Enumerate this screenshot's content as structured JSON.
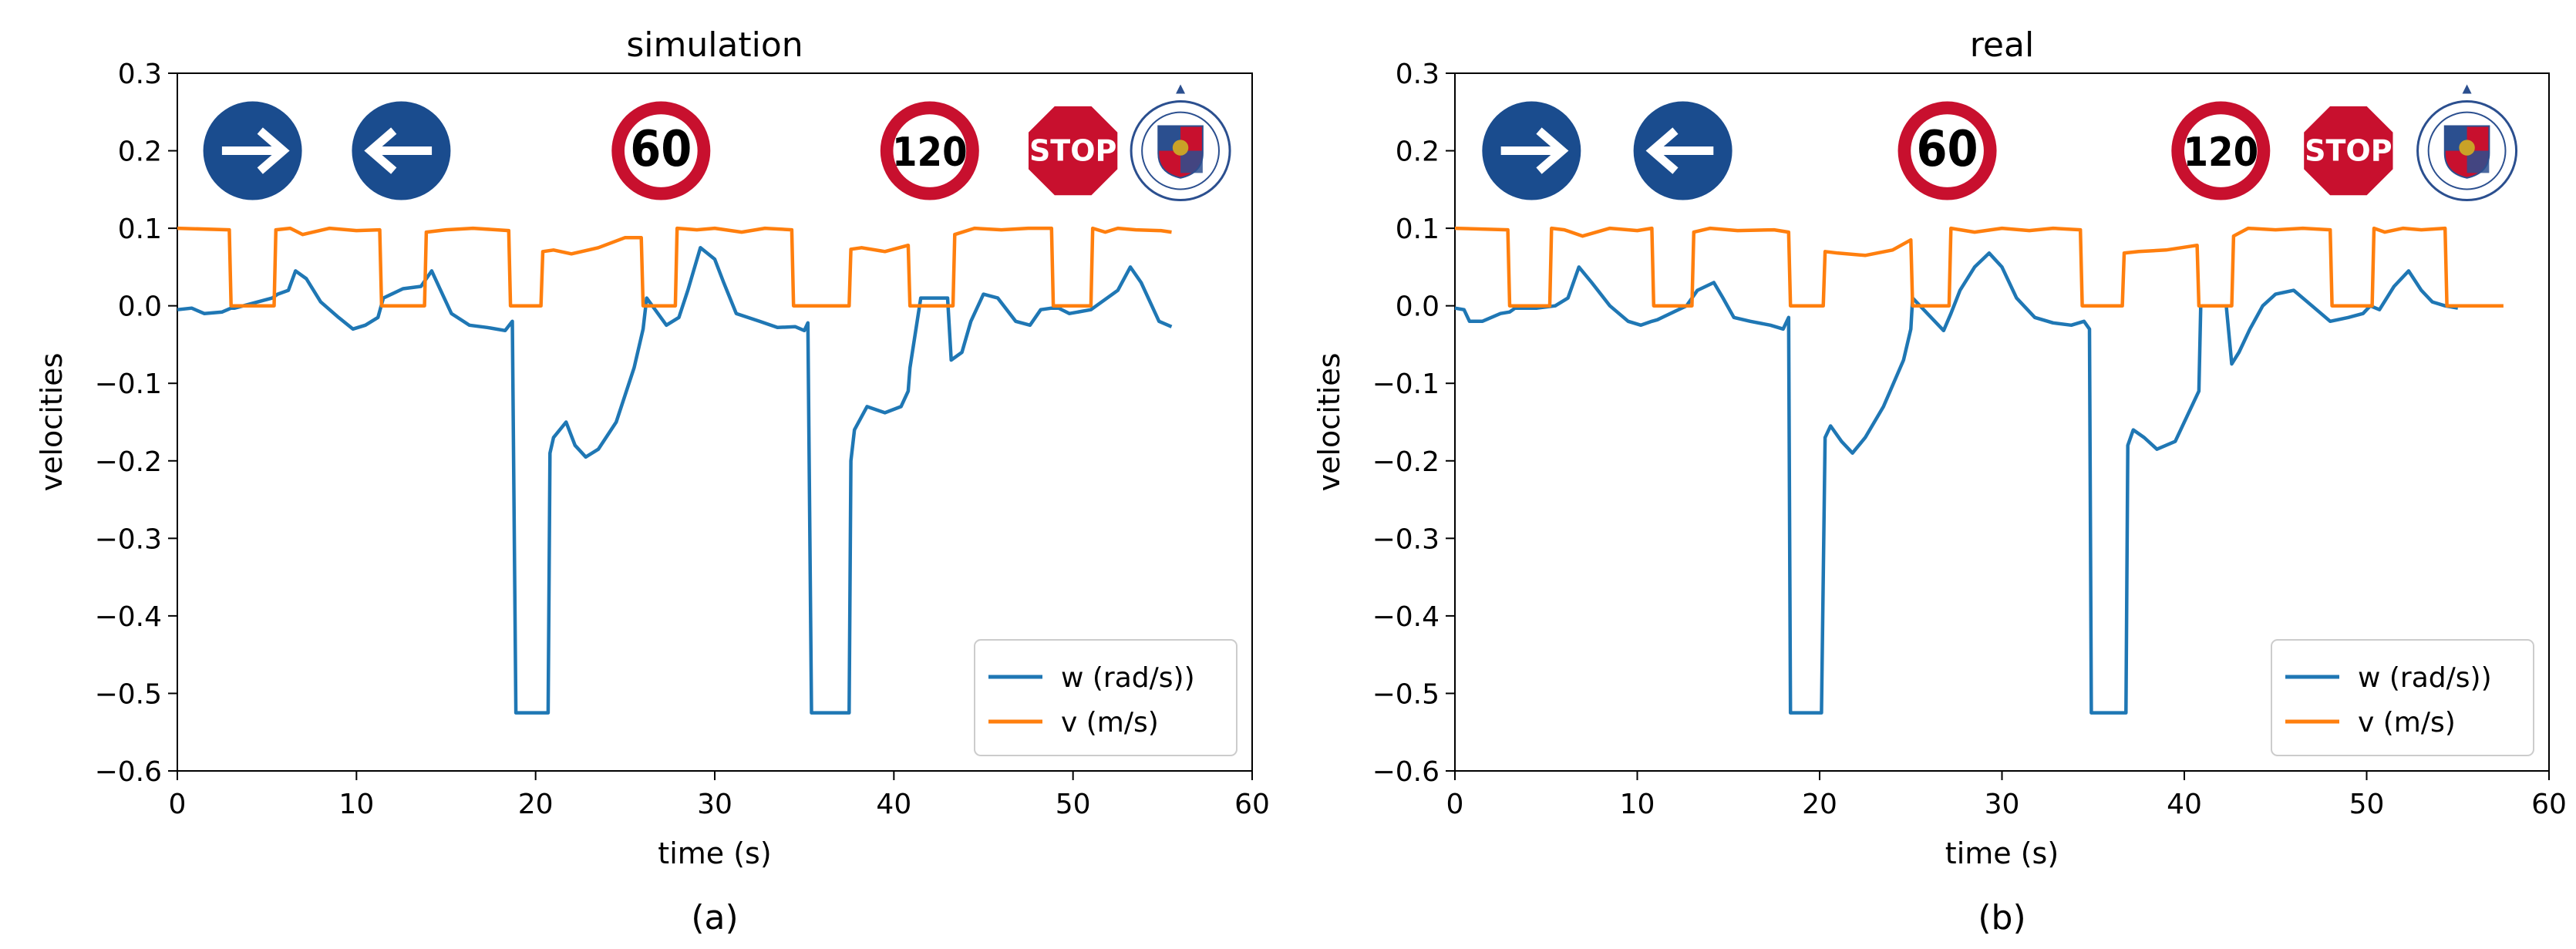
{
  "chart_data": [
    {
      "type": "line",
      "title": "simulation",
      "caption": "(a)",
      "xlabel": "time (s)",
      "ylabel": "velocities",
      "xlim": [
        0,
        60
      ],
      "ylim": [
        -0.6,
        0.3
      ],
      "xticks": [
        0,
        10,
        20,
        30,
        40,
        50,
        60
      ],
      "yticks": [
        -0.6,
        -0.5,
        -0.4,
        -0.3,
        -0.2,
        -0.1,
        0.0,
        0.1,
        0.2,
        0.3
      ],
      "xtick_labels": [
        "0",
        "10",
        "20",
        "30",
        "40",
        "50",
        "60"
      ],
      "ytick_labels": [
        "−0.6",
        "−0.5",
        "−0.4",
        "−0.3",
        "−0.2",
        "−0.1",
        "0.0",
        "0.1",
        "0.2",
        "0.3"
      ],
      "legend_position": "lower-right",
      "signs": [
        {
          "kind": "arrow-right",
          "x": 4.2
        },
        {
          "kind": "arrow-left",
          "x": 12.5
        },
        {
          "kind": "speed",
          "text": "60",
          "x": 27
        },
        {
          "kind": "speed",
          "text": "120",
          "x": 42
        },
        {
          "kind": "stop",
          "text": "STOP",
          "x": 50
        },
        {
          "kind": "seal",
          "x": 56
        }
      ],
      "series": [
        {
          "name": "w (rad/s))",
          "color": "#1f77b4",
          "x": [
            0,
            0.8,
            1.5,
            2.5,
            3.0,
            3.2,
            5.3,
            5.6,
            6.2,
            6.6,
            7.2,
            8.0,
            9.0,
            9.8,
            10.5,
            11.2,
            11.5,
            12.6,
            13.6,
            14.2,
            14.7,
            15.3,
            16.3,
            17.3,
            18.3,
            18.7,
            18.9,
            19.0,
            20.7,
            20.8,
            21.0,
            21.7,
            22.2,
            22.8,
            23.5,
            24.5,
            25.5,
            26.0,
            26.2,
            27.3,
            28.0,
            28.5,
            29.2,
            30.0,
            30.5,
            31.2,
            32.5,
            33.5,
            34.5,
            35.0,
            35.2,
            35.4,
            37.5,
            37.6,
            37.8,
            38.5,
            39.5,
            40.4,
            40.8,
            40.9,
            41.5,
            42.5,
            43.0,
            43.2,
            43.8,
            44.3,
            45.0,
            45.8,
            46.8,
            47.6,
            48.2,
            48.8,
            49.2,
            49.8,
            51.0,
            52.5,
            53.2,
            53.8,
            54.8,
            55.5
          ],
          "y": [
            -0.005,
            -0.003,
            -0.01,
            -0.008,
            -0.003,
            -0.003,
            0.01,
            0.015,
            0.02,
            0.045,
            0.035,
            0.005,
            -0.015,
            -0.03,
            -0.025,
            -0.015,
            0.01,
            0.022,
            0.025,
            0.045,
            0.02,
            -0.01,
            -0.025,
            -0.028,
            -0.032,
            -0.02,
            -0.525,
            -0.525,
            -0.525,
            -0.19,
            -0.17,
            -0.15,
            -0.18,
            -0.195,
            -0.185,
            -0.15,
            -0.08,
            -0.03,
            0.01,
            -0.025,
            -0.015,
            0.02,
            0.075,
            0.06,
            0.03,
            -0.01,
            -0.02,
            -0.028,
            -0.027,
            -0.032,
            -0.022,
            -0.525,
            -0.525,
            -0.2,
            -0.16,
            -0.13,
            -0.138,
            -0.13,
            -0.11,
            -0.08,
            0.01,
            0.01,
            0.01,
            -0.07,
            -0.06,
            -0.02,
            0.015,
            0.01,
            -0.02,
            -0.025,
            -0.005,
            -0.003,
            -0.003,
            -0.01,
            -0.005,
            0.02,
            0.05,
            0.03,
            -0.02,
            -0.027
          ]
        },
        {
          "name": "v (m/s)",
          "color": "#ff7f0e",
          "x": [
            0,
            2.9,
            3.0,
            5.4,
            5.5,
            6.3,
            7.0,
            8.5,
            10.0,
            11.3,
            11.4,
            13.8,
            13.9,
            15.0,
            16.5,
            18.5,
            18.6,
            20.3,
            20.4,
            21.0,
            22.0,
            23.5,
            25.0,
            25.9,
            26.0,
            27.8,
            27.9,
            29.0,
            30.0,
            31.5,
            32.8,
            34.3,
            34.4,
            37.5,
            37.6,
            38.2,
            39.5,
            40.8,
            40.9,
            43.3,
            43.4,
            44.5,
            46.0,
            47.5,
            48.8,
            48.9,
            51.0,
            51.1,
            51.8,
            52.5,
            53.5,
            54.8,
            54.9,
            55.5
          ],
          "y": [
            0.1,
            0.098,
            0.0,
            0.0,
            0.098,
            0.1,
            0.092,
            0.1,
            0.097,
            0.098,
            0.0,
            0.0,
            0.095,
            0.098,
            0.1,
            0.097,
            0.0,
            0.0,
            0.07,
            0.072,
            0.067,
            0.075,
            0.088,
            0.088,
            0.0,
            0.0,
            0.1,
            0.098,
            0.1,
            0.095,
            0.1,
            0.098,
            0.0,
            0.0,
            0.073,
            0.075,
            0.07,
            0.078,
            0.0,
            0.0,
            0.092,
            0.1,
            0.098,
            0.1,
            0.1,
            0.0,
            0.0,
            0.1,
            0.095,
            0.1,
            0.098,
            0.097,
            0.097,
            0.095
          ]
        }
      ]
    },
    {
      "type": "line",
      "title": "real",
      "caption": "(b)",
      "xlabel": "time (s)",
      "ylabel": "velocities",
      "xlim": [
        0,
        60
      ],
      "ylim": [
        -0.6,
        0.3
      ],
      "xticks": [
        0,
        10,
        20,
        30,
        40,
        50,
        60
      ],
      "yticks": [
        -0.6,
        -0.5,
        -0.4,
        -0.3,
        -0.2,
        -0.1,
        0.0,
        0.1,
        0.2,
        0.3
      ],
      "xtick_labels": [
        "0",
        "10",
        "20",
        "30",
        "40",
        "50",
        "60"
      ],
      "ytick_labels": [
        "−0.6",
        "−0.5",
        "−0.4",
        "−0.3",
        "−0.2",
        "−0.1",
        "0.0",
        "0.1",
        "0.2",
        "0.3"
      ],
      "legend_position": "lower-right",
      "signs": [
        {
          "kind": "arrow-right",
          "x": 4.2
        },
        {
          "kind": "arrow-left",
          "x": 12.5
        },
        {
          "kind": "speed",
          "text": "60",
          "x": 27
        },
        {
          "kind": "speed",
          "text": "120",
          "x": 42
        },
        {
          "kind": "stop",
          "text": "STOP",
          "x": 49
        },
        {
          "kind": "seal",
          "x": 55.5
        }
      ],
      "series": [
        {
          "name": "w (rad/s))",
          "color": "#1f77b4",
          "x": [
            0,
            0.5,
            0.8,
            1.5,
            2.5,
            3.0,
            3.3,
            4.5,
            5.5,
            6.2,
            6.8,
            7.5,
            8.5,
            9.5,
            10.2,
            10.8,
            11.1,
            12.7,
            13.3,
            14.2,
            14.7,
            15.3,
            16.2,
            17.3,
            18.0,
            18.3,
            18.4,
            18.5,
            20.1,
            20.3,
            20.6,
            21.2,
            21.8,
            22.5,
            23.5,
            24.6,
            25.0,
            25.1,
            26.8,
            27.2,
            27.7,
            28.5,
            29.3,
            30.0,
            30.8,
            31.8,
            32.8,
            33.8,
            34.5,
            34.8,
            34.9,
            36.8,
            36.9,
            37.2,
            37.8,
            38.5,
            39.5,
            40.2,
            40.8,
            40.9,
            42.3,
            42.6,
            43.0,
            43.6,
            44.3,
            45.0,
            46.0,
            47.0,
            48.0,
            49.0,
            49.8,
            50.2,
            50.7,
            51.5,
            52.3,
            53.0,
            53.6,
            54.3,
            55.0
          ],
          "y": [
            -0.003,
            -0.005,
            -0.02,
            -0.02,
            -0.01,
            -0.008,
            -0.003,
            -0.003,
            0.0,
            0.01,
            0.05,
            0.03,
            0.0,
            -0.02,
            -0.025,
            -0.02,
            -0.018,
            0.0,
            0.02,
            0.03,
            0.01,
            -0.015,
            -0.02,
            -0.025,
            -0.03,
            -0.015,
            -0.525,
            -0.525,
            -0.525,
            -0.17,
            -0.155,
            -0.175,
            -0.19,
            -0.17,
            -0.13,
            -0.07,
            -0.03,
            0.01,
            -0.032,
            -0.01,
            0.02,
            0.05,
            0.068,
            0.05,
            0.01,
            -0.015,
            -0.022,
            -0.025,
            -0.02,
            -0.03,
            -0.525,
            -0.525,
            -0.18,
            -0.16,
            -0.17,
            -0.185,
            -0.175,
            -0.14,
            -0.11,
            0.0,
            0.0,
            -0.075,
            -0.06,
            -0.03,
            0.0,
            0.015,
            0.02,
            0.0,
            -0.02,
            -0.015,
            -0.01,
            0.0,
            -0.005,
            0.025,
            0.045,
            0.02,
            0.005,
            0.0,
            -0.003
          ]
        },
        {
          "name": "v (m/s)",
          "color": "#ff7f0e",
          "x": [
            0,
            2.9,
            3.0,
            5.2,
            5.3,
            6.0,
            7.0,
            8.5,
            10.0,
            10.8,
            10.9,
            13.0,
            13.1,
            14.0,
            15.5,
            17.5,
            18.3,
            18.4,
            20.2,
            20.3,
            21.0,
            22.5,
            24.0,
            25.0,
            25.1,
            27.1,
            27.2,
            28.5,
            30.0,
            31.5,
            32.8,
            34.3,
            34.4,
            36.6,
            36.7,
            37.5,
            39.0,
            40.7,
            40.8,
            42.6,
            42.7,
            43.5,
            45.0,
            46.5,
            48.0,
            48.1,
            50.3,
            50.4,
            51.0,
            52.0,
            53.0,
            54.3,
            54.4,
            57.5
          ],
          "y": [
            0.1,
            0.098,
            0.0,
            0.0,
            0.1,
            0.098,
            0.09,
            0.1,
            0.097,
            0.1,
            0.0,
            0.0,
            0.095,
            0.1,
            0.097,
            0.098,
            0.095,
            0.0,
            0.0,
            0.07,
            0.068,
            0.065,
            0.072,
            0.085,
            0.0,
            0.0,
            0.1,
            0.095,
            0.1,
            0.097,
            0.1,
            0.098,
            0.0,
            0.0,
            0.068,
            0.07,
            0.072,
            0.078,
            0.0,
            0.0,
            0.09,
            0.1,
            0.098,
            0.1,
            0.098,
            0.0,
            0.0,
            0.1,
            0.095,
            0.1,
            0.098,
            0.1,
            0.0,
            0.0
          ]
        }
      ]
    }
  ]
}
